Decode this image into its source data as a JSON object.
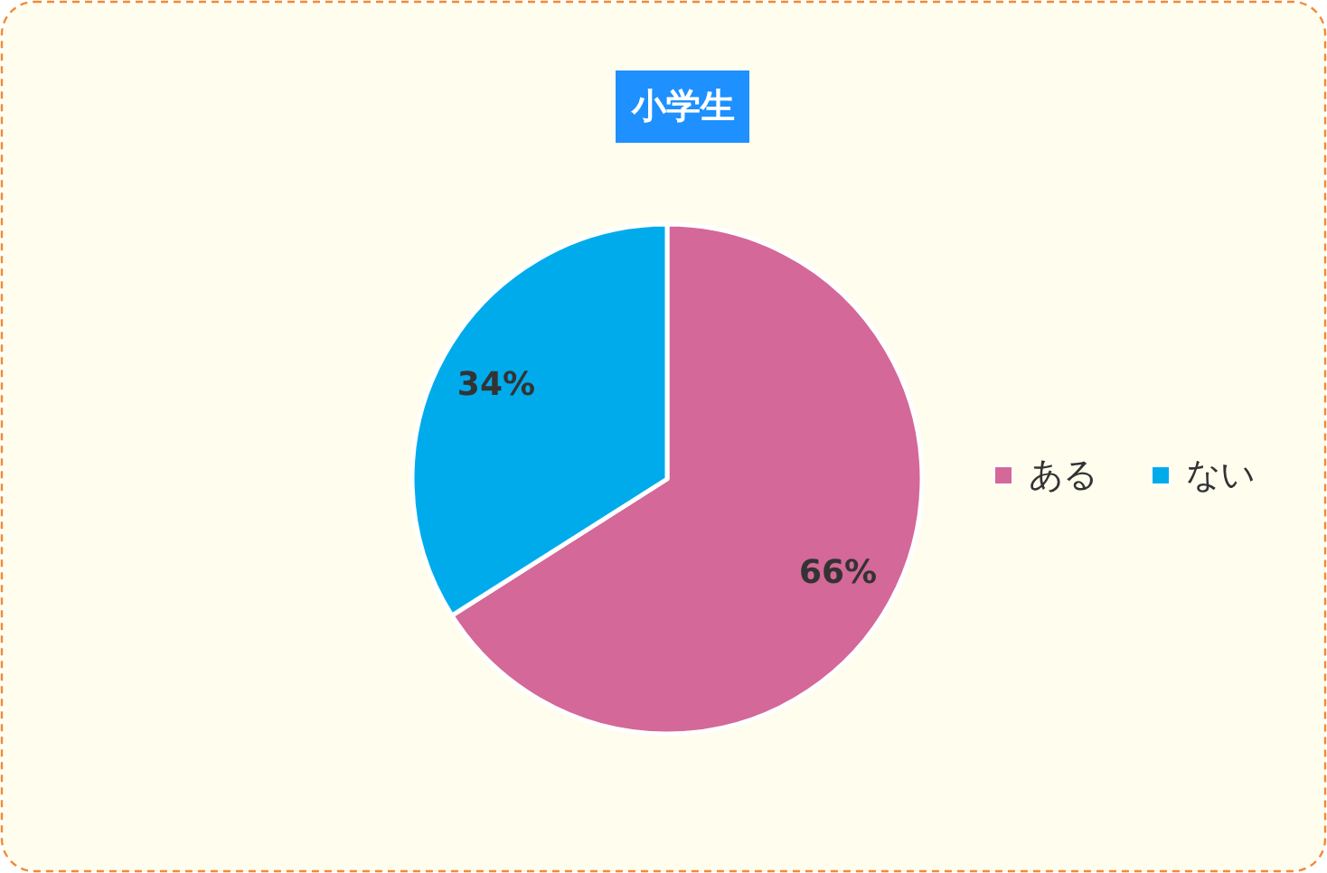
{
  "chart_data": {
    "type": "pie",
    "title": "小学生",
    "categories": [
      "ある",
      "ない"
    ],
    "values": [
      66,
      34
    ],
    "colors": [
      "#d46898",
      "#00abec"
    ],
    "value_labels": [
      "66%",
      "34%"
    ],
    "legend": "right"
  }
}
